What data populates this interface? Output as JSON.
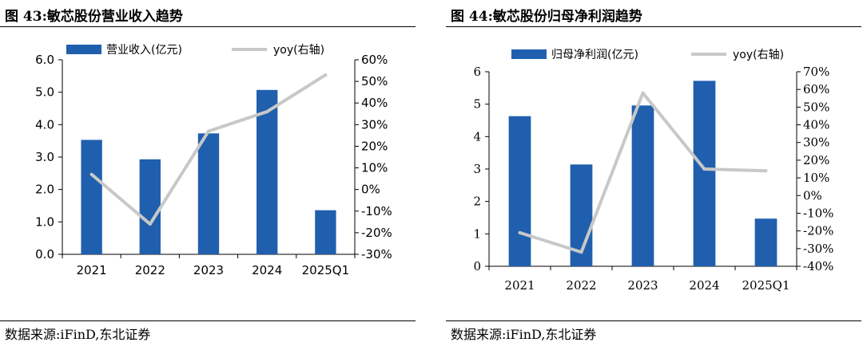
{
  "charts": [
    {
      "figure_label": "图 43:",
      "figure_title": "敏芯股份营业收入趋势",
      "source": "数据来源:iFinD,东北证券",
      "bar_color": "#1f5fae",
      "line_color": "#c8c8c8",
      "chart_data": {
        "type": "bar",
        "categories": [
          "2021",
          "2022",
          "2023",
          "2024",
          "2025Q1"
        ],
        "series": [
          {
            "name": "营业收入(亿元)",
            "type": "bar",
            "axis": "left",
            "values": [
              3.53,
              2.93,
              3.73,
              5.07,
              1.36
            ]
          },
          {
            "name": "yoy(右轴)",
            "type": "line",
            "axis": "right",
            "values": [
              0.07,
              -0.16,
              0.27,
              0.36,
              0.53
            ]
          }
        ],
        "y_left": {
          "min": 0,
          "max": 6,
          "ticks": [
            "0.0",
            "1.0",
            "2.0",
            "3.0",
            "4.0",
            "5.0",
            "6.0"
          ]
        },
        "y_right": {
          "min": -0.3,
          "max": 0.6,
          "ticks": [
            "-30%",
            "-20%",
            "-10%",
            "0%",
            "10%",
            "20%",
            "30%",
            "40%",
            "50%",
            "60%"
          ]
        },
        "legend_position": "top",
        "grid": false
      }
    },
    {
      "figure_label": "图 44:",
      "figure_title": "敏芯股份归母净利润趋势",
      "source": "数据来源:iFinD,东北证券",
      "bar_color": "#1f5fae",
      "line_color": "#c8c8c8",
      "chart_data": {
        "type": "bar",
        "categories": [
          "2021",
          "2022",
          "2023",
          "2024",
          "2025Q1"
        ],
        "series": [
          {
            "name": "归母净利润(亿元)",
            "type": "bar",
            "axis": "left",
            "values": [
              4.63,
              3.14,
              4.96,
              5.72,
              1.47
            ]
          },
          {
            "name": "yoy(右轴)",
            "type": "line",
            "axis": "right",
            "values": [
              -0.21,
              -0.32,
              0.58,
              0.15,
              0.14
            ]
          }
        ],
        "y_left": {
          "min": 0,
          "max": 6,
          "ticks": [
            "0",
            "1",
            "2",
            "3",
            "4",
            "5",
            "6"
          ]
        },
        "y_right": {
          "min": -0.4,
          "max": 0.7,
          "ticks": [
            "-40%",
            "-30%",
            "-20%",
            "-10%",
            "0%",
            "10%",
            "20%",
            "30%",
            "40%",
            "50%",
            "60%",
            "70%"
          ]
        },
        "legend_position": "top",
        "grid": false
      }
    }
  ]
}
